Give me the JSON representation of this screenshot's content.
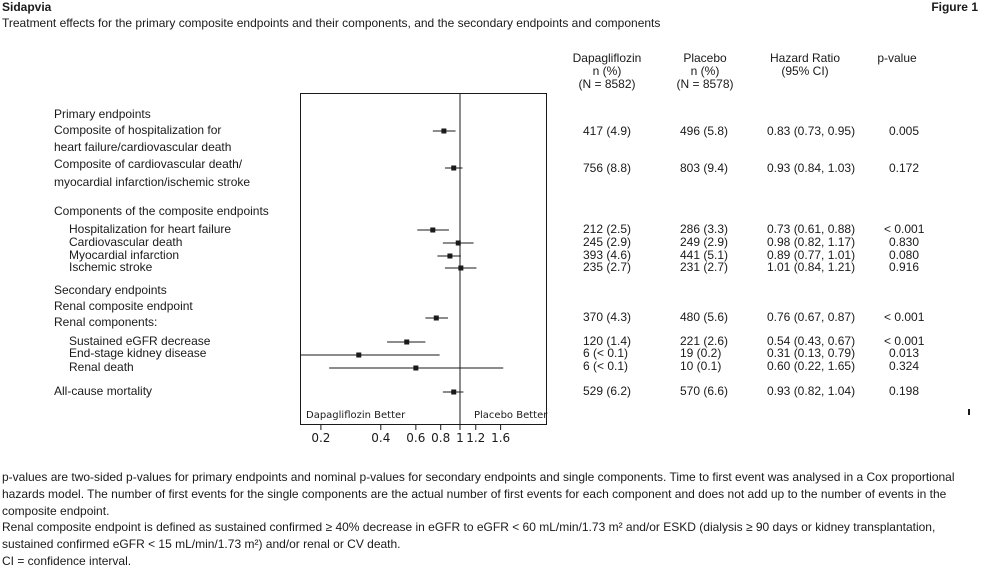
{
  "header": {
    "drug": "Sidapvia",
    "figure": "Figure 1",
    "subtitle": "Treatment effects for the primary composite endpoints and their components, and the secondary endpoints and components"
  },
  "columns": {
    "dapa": [
      "Dapagliflozin",
      "n (%)",
      "(N = 8582)"
    ],
    "placebo": [
      "Placebo",
      "n (%)",
      "(N = 8578)"
    ],
    "hr": [
      "Hazard Ratio",
      "(95% CI)"
    ],
    "p": [
      "p-value"
    ]
  },
  "rows": [
    {
      "label": "Primary endpoints",
      "heading": true
    },
    {
      "label": "Composite of hospitalization for",
      "label2": "heart failure/cardiovascular death",
      "dapa": "417 (4.9)",
      "placebo": "496 (5.8)",
      "hr_text": "0.83 (0.73, 0.95)",
      "p": "0.005"
    },
    {
      "label": "Composite of cardiovascular death/",
      "label2": "myocardial infarction/ischemic stroke",
      "dapa": "756 (8.8)",
      "placebo": "803 (9.4)",
      "hr_text": "0.93 (0.84, 1.03)",
      "p": "0.172"
    },
    {
      "label": "Components of the composite endpoints",
      "heading": true
    },
    {
      "label": "Hospitalization for heart failure",
      "indent": true,
      "dapa": "212 (2.5)",
      "placebo": "286 (3.3)",
      "hr_text": "0.73 (0.61, 0.88)",
      "p": "< 0.001"
    },
    {
      "label": "Cardiovascular death",
      "indent": true,
      "dapa": "245 (2.9)",
      "placebo": "249 (2.9)",
      "hr_text": "0.98 (0.82, 1.17)",
      "p": "0.830"
    },
    {
      "label": "Myocardial infarction",
      "indent": true,
      "dapa": "393 (4.6)",
      "placebo": "441 (5.1)",
      "hr_text": "0.89 (0.77, 1.01)",
      "p": "0.080"
    },
    {
      "label": "Ischemic stroke",
      "indent": true,
      "dapa": "235 (2.7)",
      "placebo": "231 (2.7)",
      "hr_text": "1.01 (0.84, 1.21)",
      "p": "0.916"
    },
    {
      "label": "Secondary endpoints",
      "heading": true
    },
    {
      "label": "Renal composite endpoint",
      "heading": true
    },
    {
      "label": "Renal components:",
      "dapa": "370 (4.3)",
      "placebo": "480 (5.6)",
      "hr_text": "0.76 (0.67, 0.87)",
      "p": "< 0.001"
    },
    {
      "label": "Sustained eGFR decrease",
      "indent": true,
      "dapa": "120 (1.4)",
      "placebo": "221 (2.6)",
      "hr_text": "0.54 (0.43, 0.67)",
      "p": "< 0.001"
    },
    {
      "label": "End-stage kidney disease",
      "indent": true,
      "dapa": "6 (< 0.1)",
      "placebo": "19 (0.2)",
      "hr_text": "0.31 (0.13, 0.79)",
      "p": "0.013"
    },
    {
      "label": "Renal death",
      "indent": true,
      "dapa": "6 (< 0.1)",
      "placebo": "10 (0.1)",
      "hr_text": "0.60 (0.22, 1.65)",
      "p": "0.324"
    },
    {
      "label": "All-cause mortality",
      "dapa": "529 (6.2)",
      "placebo": "570 (6.6)",
      "hr_text": "0.93 (0.82, 1.04)",
      "p": "0.198"
    }
  ],
  "chart_data": {
    "type": "scatter",
    "title": "",
    "xlabel": "",
    "ylabel": "",
    "x_scale": "log",
    "reference_line": 1,
    "xticks": [
      "0.2",
      "0.4",
      "0.6",
      "0.8",
      "1",
      "1.2",
      "1.6"
    ],
    "xtick_values": [
      0.2,
      0.4,
      0.6,
      0.8,
      1,
      1.2,
      1.6
    ],
    "region_labels": {
      "left": "Dapagliflozin Better",
      "right": "Placebo Better"
    },
    "series": [
      {
        "values": [
          {
            "label": "Composite of hospitalization for heart failure/cardiovascular death",
            "hr": 0.83,
            "lo": 0.73,
            "hi": 0.95
          },
          {
            "label": "Composite of cardiovascular death/myocardial infarction/ischemic stroke",
            "hr": 0.93,
            "lo": 0.84,
            "hi": 1.03
          },
          {
            "label": "Hospitalization for heart failure",
            "hr": 0.73,
            "lo": 0.61,
            "hi": 0.88
          },
          {
            "label": "Cardiovascular death",
            "hr": 0.98,
            "lo": 0.82,
            "hi": 1.17
          },
          {
            "label": "Myocardial infarction",
            "hr": 0.89,
            "lo": 0.77,
            "hi": 1.01
          },
          {
            "label": "Ischemic stroke",
            "hr": 1.01,
            "lo": 0.84,
            "hi": 1.21
          },
          {
            "label": "Renal composite endpoint",
            "hr": 0.76,
            "lo": 0.67,
            "hi": 0.87
          },
          {
            "label": "Sustained eGFR decrease",
            "hr": 0.54,
            "lo": 0.43,
            "hi": 0.67
          },
          {
            "label": "End-stage kidney disease",
            "hr": 0.31,
            "lo": 0.13,
            "hi": 0.79
          },
          {
            "label": "Renal death",
            "hr": 0.6,
            "lo": 0.22,
            "hi": 1.65
          },
          {
            "label": "All-cause mortality",
            "hr": 0.93,
            "lo": 0.82,
            "hi": 1.04
          }
        ]
      }
    ]
  },
  "footnotes": [
    "p-values are two-sided p-values for primary endpoints and nominal p-values for secondary endpoints and single components.  Time to first event was analysed in a Cox proportional hazards model. The number of first events for the single components are the actual number of first events for each component and does not add up to the number of events in the composite endpoint.",
    "Renal composite endpoint is defined as sustained confirmed ≥ 40% decrease in eGFR to eGFR < 60 mL/min/1.73 m² and/or ESKD (dialysis ≥ 90 days or kidney transplantation, sustained confirmed eGFR < 15 mL/min/1.73 m²) and/or renal or CV death.",
    "CI = confidence interval."
  ]
}
